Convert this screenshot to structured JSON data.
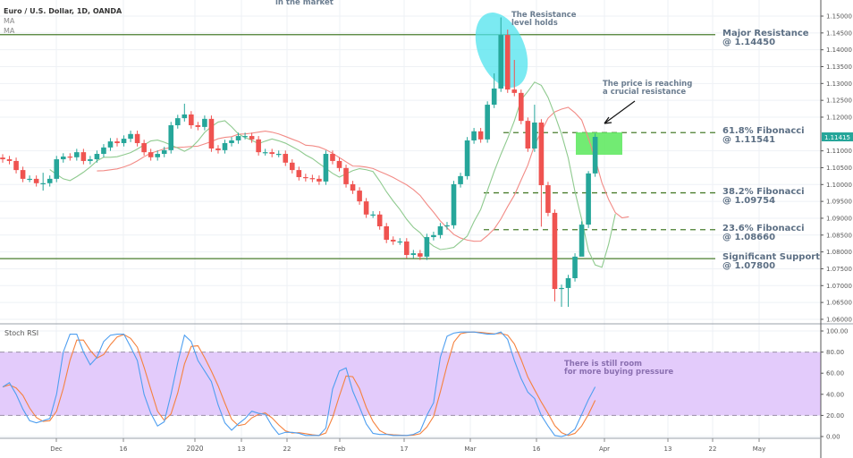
{
  "header": {
    "symbol_title": "Euro / U.S. Dollar, 1D, OANDA",
    "indicator_1": "MA",
    "indicator_2": "MA",
    "top_note": "in the market"
  },
  "annotations": {
    "resistance_holds": "The Resistance\nlevel holds",
    "price_reaching": "The price is reaching\na crucial resistance",
    "rsi_room": "There is still room\nfor more buying pressure"
  },
  "levels": [
    {
      "label": "Major Resistance\n@ 1.14450",
      "price": 1.1445,
      "style": "solid"
    },
    {
      "label": "61.8% Fibonacci\n@ 1.11541",
      "price": 1.11541,
      "style": "dashed"
    },
    {
      "label": "38.2% Fibonacci\n@ 1.09754",
      "price": 1.09754,
      "style": "dashed"
    },
    {
      "label": "23.6% Fibonacci\n@ 1.08660",
      "price": 1.0866,
      "style": "dashed"
    },
    {
      "label": "Significant Support\n@ 1.07800",
      "price": 1.078,
      "style": "solid"
    }
  ],
  "colors": {
    "up": "#26a69a",
    "down": "#ef5350",
    "ma_fast": "#8fca8f",
    "ma_slow": "#f28b86",
    "level_line": "#4a7d2e",
    "stoch_k": "#4f9ff0",
    "stoch_d": "#f5823f",
    "stoch_band": "#e3cbfb",
    "highlight_zone": "#59e85a",
    "resistance_ellipse": "#4fe3ee",
    "last_price_bg": "#26a69a"
  },
  "chart_data": [
    {
      "type": "candlestick",
      "title": "Euro / U.S. Dollar, 1D, OANDA",
      "ylim": [
        1.06,
        1.15
      ],
      "y_ticks": [
        "1.15000",
        "1.14500",
        "1.14000",
        "1.13500",
        "1.13000",
        "1.12500",
        "1.12000",
        "1.11000",
        "1.10500",
        "1.10000",
        "1.09500",
        "1.09000",
        "1.08500",
        "1.08000",
        "1.07500",
        "1.07000",
        "1.06500",
        "1.06000"
      ],
      "x_ticks": [
        "Dec",
        "16",
        "2020",
        "13",
        "22",
        "Feb",
        "17",
        "Mar",
        "16",
        "Apr",
        "13",
        "22",
        "May"
      ],
      "last_price": "1.11415",
      "first_open": 1.108,
      "close": [
        1.1075,
        1.107,
        1.1043,
        1.1017,
        1.1017,
        1.1004,
        1.1004,
        1.1017,
        1.1075,
        1.1083,
        1.1081,
        1.1096,
        1.107,
        1.1075,
        1.1091,
        1.111,
        1.1128,
        1.1123,
        1.1136,
        1.115,
        1.1123,
        1.1096,
        1.1081,
        1.1091,
        1.1102,
        1.1176,
        1.1197,
        1.1208,
        1.1176,
        1.1171,
        1.1195,
        1.1107,
        1.1102,
        1.1123,
        1.1131,
        1.1144,
        1.1144,
        1.1134,
        1.1096,
        1.1096,
        1.1091,
        1.1091,
        1.1065,
        1.1043,
        1.1022,
        1.1019,
        1.1017,
        1.1009,
        1.1091,
        1.107,
        1.1049,
        1.1001,
        1.0982,
        1.095,
        1.0911,
        1.0911,
        1.0876,
        1.0836,
        1.0831,
        1.0831,
        1.0791,
        1.0796,
        1.0786,
        1.0844,
        1.085,
        1.0876,
        1.0879,
        1.1001,
        1.1025,
        1.1131,
        1.1158,
        1.1134,
        1.1237,
        1.1285,
        1.1444,
        1.1282,
        1.1272,
        1.1189,
        1.1107,
        1.1184,
        1.0998,
        1.0916,
        1.069,
        1.0693,
        1.0722,
        1.0786,
        1.0881,
        1.1033,
        1.11415
      ],
      "high_overrides": {
        "6": 1.1035,
        "27": 1.124,
        "73": 1.133,
        "74": 1.1496,
        "75": 1.146,
        "76": 1.137,
        "79": 1.1237,
        "87": 1.104
      },
      "low_overrides": {
        "6": 1.0982,
        "80": 1.0875,
        "82": 1.0653,
        "83": 1.0637,
        "84": 1.0637,
        "86": 1.083
      },
      "series": [
        {
          "name": "MA",
          "kind": "sma",
          "period": 5
        },
        {
          "name": "MA",
          "kind": "sma",
          "period": 10
        }
      ]
    },
    {
      "type": "line",
      "title": "Stoch RSI",
      "ylim": [
        0,
        100
      ],
      "y_ticks": [
        "100.00",
        "80.00",
        "60.00",
        "40.00",
        "20.00",
        "0.00"
      ],
      "band": [
        20,
        80
      ],
      "k": [
        47,
        51,
        40,
        26,
        15,
        13,
        15,
        17,
        40,
        80,
        97,
        97,
        80,
        68,
        75,
        90,
        96,
        97,
        97,
        85,
        72,
        40,
        22,
        10,
        14,
        40,
        70,
        96,
        90,
        72,
        62,
        52,
        30,
        13,
        6,
        12,
        17,
        24,
        22,
        21,
        10,
        2,
        4,
        4,
        3,
        1,
        1,
        1,
        8,
        45,
        62,
        65,
        43,
        28,
        12,
        3,
        2,
        2,
        1,
        1,
        1,
        2,
        5,
        20,
        32,
        75,
        95,
        98,
        99,
        99,
        99,
        98,
        97,
        97,
        99,
        92,
        72,
        55,
        42,
        36,
        20,
        10,
        1,
        0,
        2,
        7,
        21,
        35,
        47
      ]
    }
  ]
}
